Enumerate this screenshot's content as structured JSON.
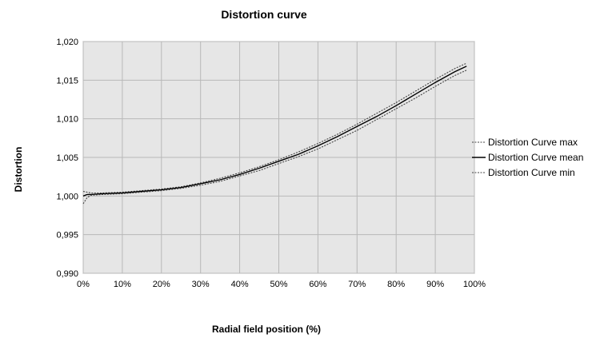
{
  "chart_data": {
    "type": "line",
    "title": "Distortion curve",
    "xlabel": "Radial field position (%)",
    "ylabel": "Distortion",
    "xlim": [
      0,
      100
    ],
    "ylim": [
      0.99,
      1.02
    ],
    "x_ticks": [
      0,
      10,
      20,
      30,
      40,
      50,
      60,
      70,
      80,
      90,
      100
    ],
    "x_tick_labels": [
      "0%",
      "10%",
      "20%",
      "30%",
      "40%",
      "50%",
      "60%",
      "70%",
      "80%",
      "90%",
      "100%"
    ],
    "y_ticks": [
      0.99,
      0.995,
      1.0,
      1.005,
      1.01,
      1.015,
      1.02
    ],
    "y_tick_labels": [
      "0,990",
      "0,995",
      "1,000",
      "1,005",
      "1,010",
      "1,015",
      "1,020"
    ],
    "grid": true,
    "plot_background": "#e6e6e6",
    "grid_color": "#b8b8b8",
    "legend_position": "right",
    "x": [
      0,
      1,
      2,
      5,
      10,
      15,
      20,
      25,
      30,
      35,
      40,
      45,
      50,
      55,
      60,
      65,
      70,
      75,
      80,
      85,
      90,
      95,
      98
    ],
    "series": [
      {
        "name": "Distortion Curve max",
        "style": "dotted",
        "color": "#444444",
        "values": [
          1.0006,
          1.0005,
          1.0004,
          1.0004,
          1.0005,
          1.0007,
          1.0009,
          1.0012,
          1.0017,
          1.0023,
          1.003,
          1.0038,
          1.0047,
          1.0057,
          1.0068,
          1.008,
          1.0093,
          1.0107,
          1.0121,
          1.0136,
          1.0151,
          1.0165,
          1.0172
        ]
      },
      {
        "name": "Distortion Curve mean",
        "style": "solid",
        "color": "#000000",
        "values": [
          1.0,
          1.0002,
          1.0002,
          1.0003,
          1.0004,
          1.0006,
          1.0008,
          1.0011,
          1.0016,
          1.0021,
          1.0028,
          1.0036,
          1.0045,
          1.0054,
          1.0065,
          1.0077,
          1.009,
          1.0103,
          1.0117,
          1.0132,
          1.0147,
          1.0161,
          1.0168
        ]
      },
      {
        "name": "Distortion Curve min",
        "style": "dotted",
        "color": "#444444",
        "values": [
          0.999,
          0.9998,
          1.0001,
          1.0002,
          1.0003,
          1.0005,
          1.0007,
          1.001,
          1.0014,
          1.0019,
          1.0026,
          1.0033,
          1.0042,
          1.0051,
          1.0061,
          1.0073,
          1.0085,
          1.0099,
          1.0113,
          1.0127,
          1.0142,
          1.0156,
          1.0163
        ]
      }
    ]
  }
}
